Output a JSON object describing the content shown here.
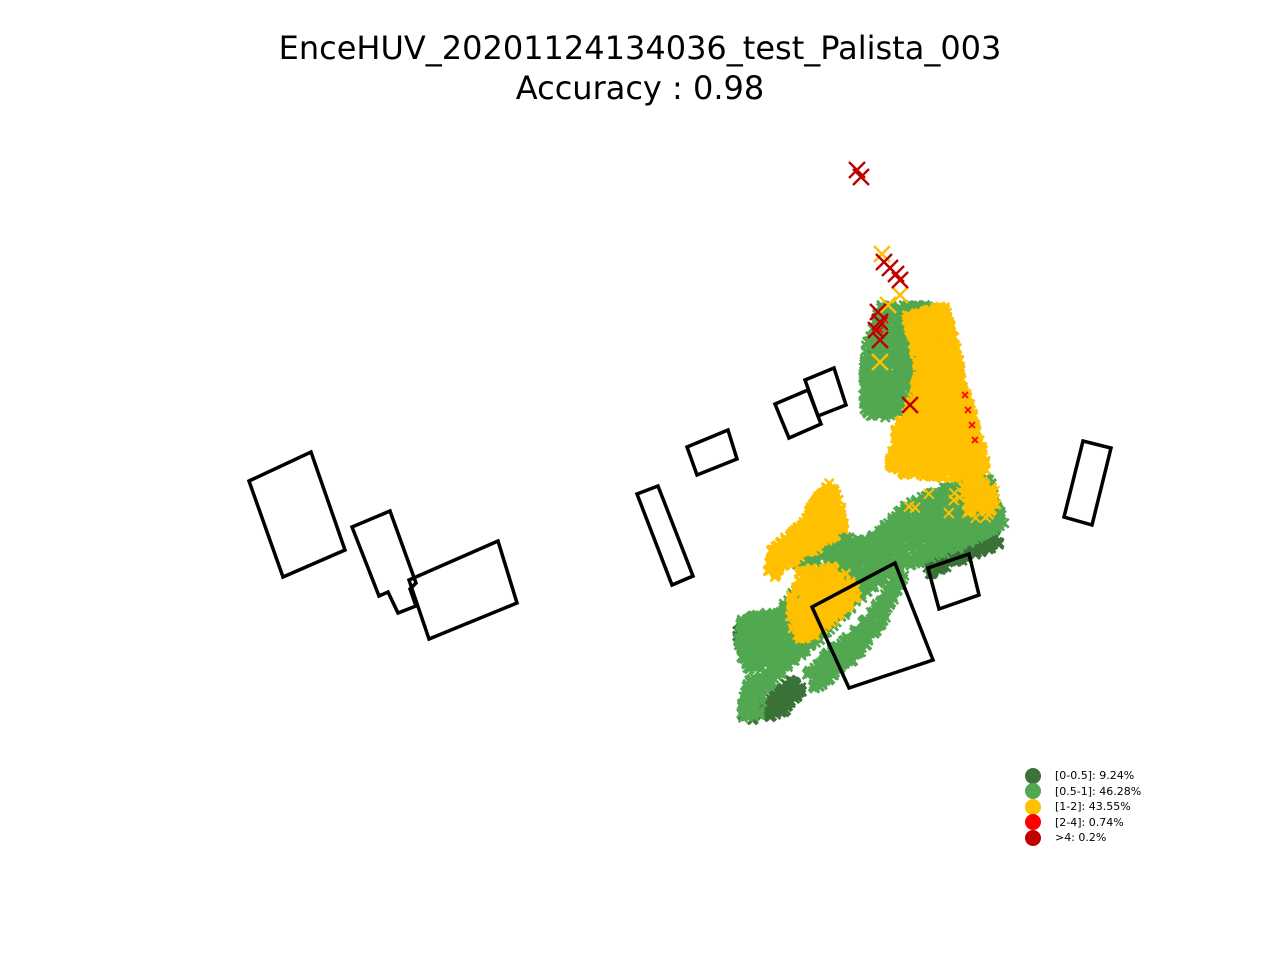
{
  "chart_data": {
    "type": "scatter",
    "title": "EnceHUV_20201124134036_test_Palista_003",
    "subtitle": "Accuracy : 0.98",
    "axes_visible": false,
    "legend_position": "lower-right",
    "legend": [
      {
        "label": "[0-0.5]: 9.24%",
        "color": "#3a7237"
      },
      {
        "label": "[0.5-1]: 46.28%",
        "color": "#52a850"
      },
      {
        "label": "[1-2]: 43.55%",
        "color": "#ffc000"
      },
      {
        "label": "[2-4]: 0.74%",
        "color": "#ff0000"
      },
      {
        "label": ">4: 0.2%",
        "color": "#c00000"
      }
    ]
  }
}
